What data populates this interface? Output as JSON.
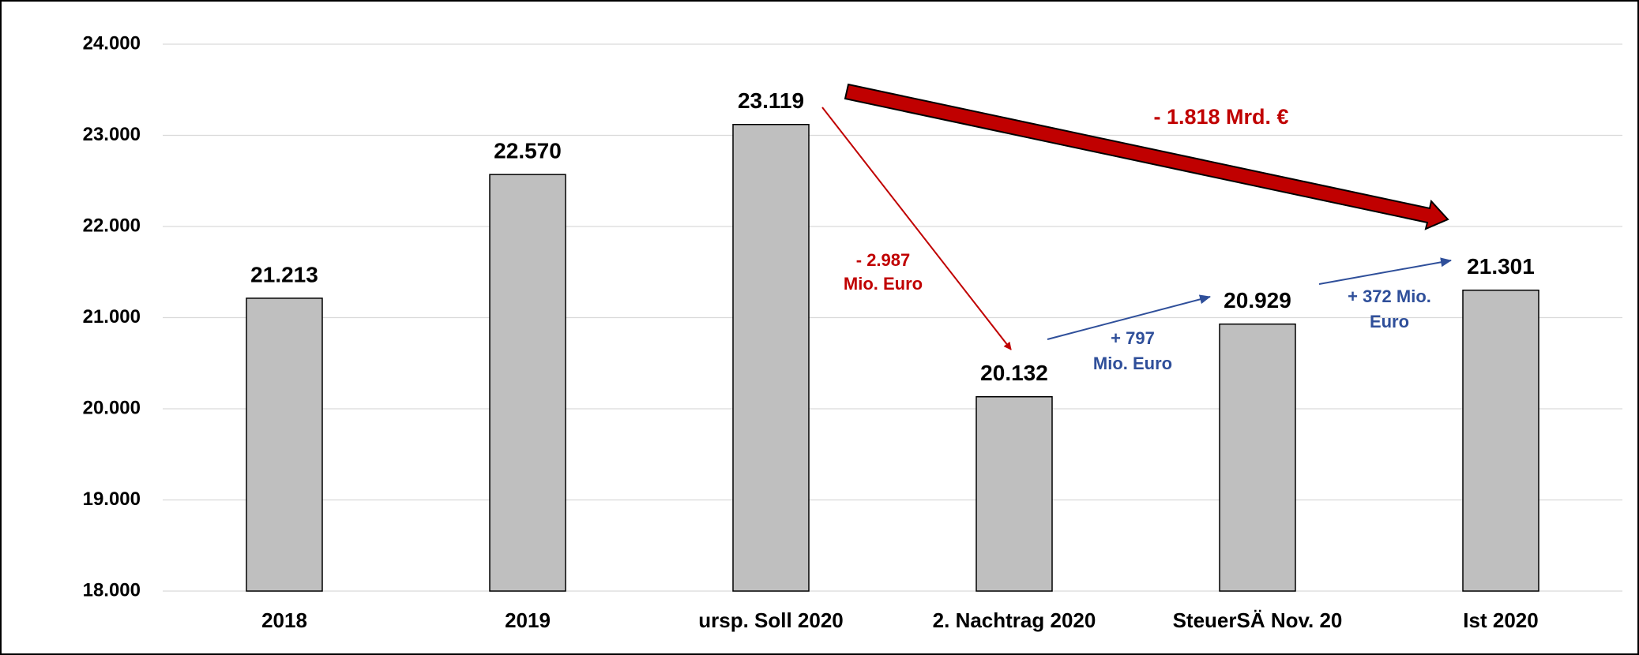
{
  "chart_data": {
    "type": "bar",
    "categories": [
      "2018",
      "2019",
      "ursp. Soll 2020",
      "2. Nachtrag 2020",
      "SteuerSÄ Nov. 20",
      "Ist 2020"
    ],
    "values": [
      21213,
      22570,
      23119,
      20132,
      20929,
      21301
    ],
    "value_labels": [
      "21.213",
      "22.570",
      "23.119",
      "20.132",
      "20.929",
      "21.301"
    ],
    "color": "#bfbfbf",
    "ylim": [
      18000,
      24000
    ],
    "yticks": [
      {
        "value": 18000,
        "label": "18.000"
      },
      {
        "value": 19000,
        "label": "19.000"
      },
      {
        "value": 20000,
        "label": "20.000"
      },
      {
        "value": 21000,
        "label": "21.000"
      },
      {
        "value": 22000,
        "label": "22.000"
      },
      {
        "value": 23000,
        "label": "23.000"
      },
      {
        "value": 24000,
        "label": "24.000"
      }
    ],
    "grid": true,
    "annotations": [
      {
        "lines": [
          "- 1.818 Mrd. €"
        ]
      },
      {
        "lines": [
          "- 2.987",
          "Mio. Euro"
        ]
      },
      {
        "lines": [
          "+ 797",
          "Mio. Euro"
        ]
      },
      {
        "lines": [
          "+ 372 Mio.",
          "Euro"
        ]
      }
    ]
  }
}
